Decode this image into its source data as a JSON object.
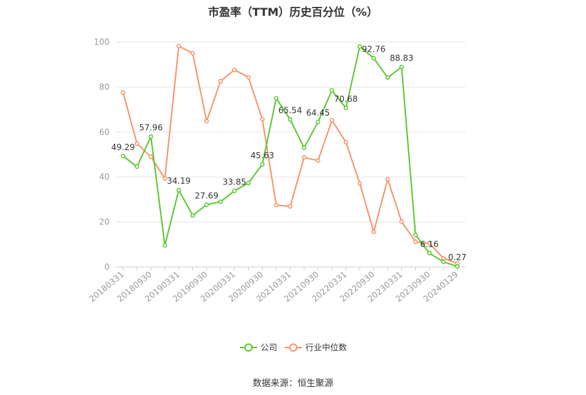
{
  "chart_data": {
    "type": "line",
    "title": "市盈率（TTM）历史百分位（%）",
    "source": "数据来源：恒生聚源",
    "ylim": [
      0,
      100
    ],
    "yticks": [
      0,
      20,
      40,
      60,
      80,
      100
    ],
    "grid": true,
    "legend_position": "bottom",
    "x": [
      "20180331",
      "20180630",
      "20180930",
      "20181231",
      "20190331",
      "20190630",
      "20190930",
      "20191231",
      "20200331",
      "20200630",
      "20200930",
      "20201231",
      "20210331",
      "20210630",
      "20210930",
      "20211231",
      "20220331",
      "20220630",
      "20220930",
      "20221231",
      "20230331",
      "20230630",
      "20230930",
      "20231231",
      "20240129"
    ],
    "xtick_labels": [
      "20180331",
      "20180930",
      "20190331",
      "20190930",
      "20200331",
      "20200930",
      "20210331",
      "20210930",
      "20220331",
      "20220930",
      "20230331",
      "20230930",
      "20240129"
    ],
    "series": [
      {
        "name": "公司",
        "color": "#5ac832",
        "values": [
          49.29,
          44.6,
          57.96,
          9.6,
          34.19,
          22.9,
          27.69,
          29.0,
          33.85,
          37.3,
          45.63,
          75.0,
          65.54,
          53.0,
          64.45,
          78.5,
          70.68,
          98.0,
          92.76,
          84.2,
          88.83,
          14.3,
          6.16,
          2.3,
          0.27
        ],
        "labels": {
          "0": "49.29",
          "2": "57.96",
          "4": "34.19",
          "6": "27.69",
          "8": "33.85",
          "10": "45.63",
          "12": "65.54",
          "14": "64.45",
          "16": "70.68",
          "18": "92.76",
          "20": "88.83",
          "22": "6.16",
          "24": "0.27"
        }
      },
      {
        "name": "行业中位数",
        "color": "#f4946a",
        "values": [
          77.6,
          54.8,
          49.0,
          39.3,
          98.2,
          95.0,
          64.8,
          82.6,
          87.6,
          84.3,
          65.7,
          27.5,
          26.9,
          48.7,
          47.3,
          65.2,
          55.5,
          37.1,
          15.6,
          39.0,
          20.2,
          11.2,
          10.5,
          3.9,
          1.6
        ]
      }
    ]
  }
}
